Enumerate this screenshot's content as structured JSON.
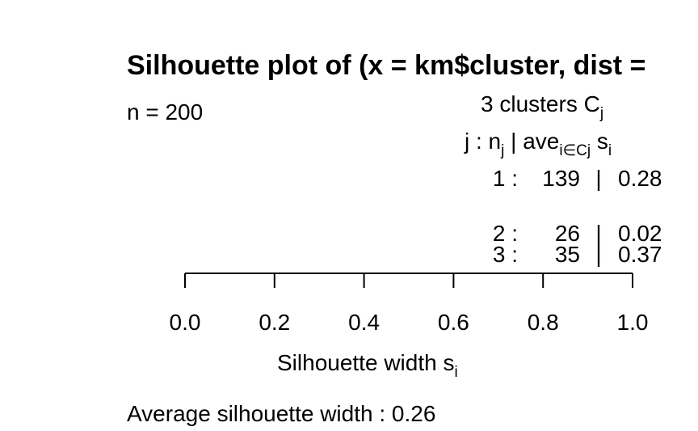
{
  "chart_data": {
    "type": "bar",
    "orientation": "horizontal",
    "title": "Silhouette plot of (x = km$cluster, dist =",
    "n_label": "n = 200",
    "n": 200,
    "clusters_header": {
      "prefix": "3  clusters  C",
      "subscript": "j"
    },
    "table_header": {
      "j_label": "j :  n",
      "j_sub": "j",
      "ave_label": " | ave",
      "ave_sub": "i∈Cj",
      "s_label": "  s",
      "s_sub": "i"
    },
    "clusters": [
      {
        "j": "1",
        "n": 139,
        "avg_width": 0.28
      },
      {
        "j": "2",
        "n": 26,
        "avg_width": 0.02
      },
      {
        "j": "3",
        "n": 35,
        "avg_width": 0.37
      }
    ],
    "xlim": [
      0.0,
      1.0
    ],
    "xticks": [
      "0.0",
      "0.2",
      "0.4",
      "0.6",
      "0.8",
      "1.0"
    ],
    "xlabel": "Silhouette width s",
    "xlabel_sub": "i",
    "footer": "Average silhouette width :  0.26",
    "average_width": 0.26,
    "grid": false
  }
}
